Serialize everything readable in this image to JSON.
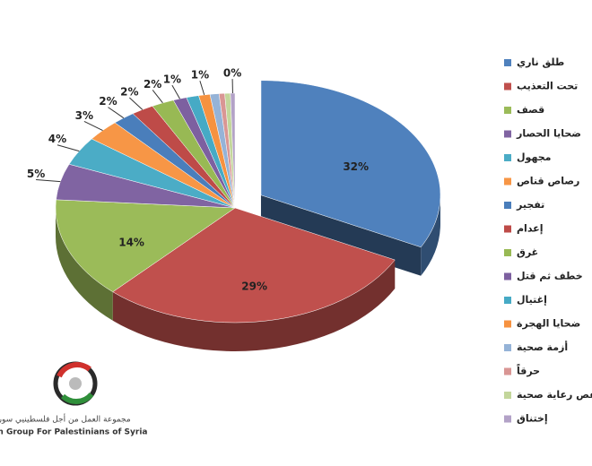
{
  "chart_data": {
    "type": "pie3d",
    "categories": [
      "طلق ناري",
      "تحت التعذيب",
      "قصف",
      "ضحايا الحصار",
      "مجهول",
      "رصاص قناص",
      "تفجير",
      "إعدام",
      "غرق",
      "خطف ثم قتل",
      "إغتيال",
      "ضحايا الهجرة",
      "أزمة صحية",
      "حرقاً",
      "نقص رعاية صحية",
      "إختناق"
    ],
    "values": [
      32,
      29,
      14,
      5,
      4,
      3,
      2,
      2,
      2,
      1.2,
      1.1,
      1.0,
      0.8,
      0.5,
      0.5,
      0.4
    ],
    "value_labels": [
      "32%",
      "29%",
      "14%",
      "5%",
      "4%",
      "3%",
      "2%",
      "2%",
      "2%",
      "1%",
      null,
      "1%",
      null,
      null,
      null,
      "0%"
    ],
    "colors": [
      "#4f81bd",
      "#c0504d",
      "#9bbb59",
      "#8064a2",
      "#4bacc6",
      "#f79646",
      "#4a7ebb",
      "#be4b48",
      "#98b954",
      "#7d60a0",
      "#46aac5",
      "#f69240",
      "#95b3d7",
      "#d99694",
      "#c3d69b",
      "#b3a2c7"
    ],
    "legend": "right"
  },
  "logo": {
    "arabic": "مجموعة العمل من أجل فلسطينيي سورية",
    "english": "Action Group For Palestinians of Syria"
  }
}
